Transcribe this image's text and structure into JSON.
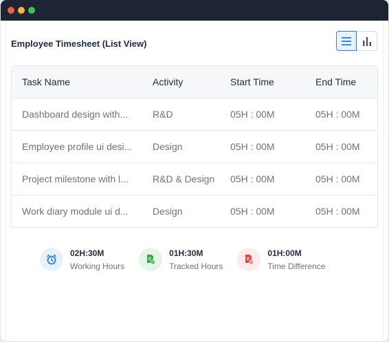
{
  "page": {
    "title": "Employee Timesheet (List View)",
    "views": [
      {
        "icon": "list-icon",
        "active": true
      },
      {
        "icon": "bar-chart-icon",
        "active": false
      }
    ]
  },
  "table": {
    "columns": [
      "Task Name",
      "Activity",
      "Start Time",
      "End Time"
    ],
    "rows": [
      {
        "task": "Dashboard design with...",
        "activity": "R&D",
        "start": "05H : 00M",
        "end": "05H : 00M"
      },
      {
        "task": "Employee profile ui desi...",
        "activity": "Design",
        "start": "05H : 00M",
        "end": "05H : 00M"
      },
      {
        "task": "Project milestone with l...",
        "activity": "R&D & Design",
        "start": "05H : 00M",
        "end": "05H : 00M"
      },
      {
        "task": "Work diary module ui d...",
        "activity": "Design",
        "start": "05H : 00M",
        "end": "05H : 00M"
      }
    ]
  },
  "summary": [
    {
      "value": "02H:30M",
      "label": "Working Hours",
      "icon": "alarm-clock-icon",
      "color": "#1e7be6",
      "bg": "#e6f1fd"
    },
    {
      "value": "01H:30M",
      "label": "Tracked Hours",
      "icon": "tracked-doc-icon",
      "color": "#3aa94f",
      "bg": "#e7f5e9"
    },
    {
      "value": "01H:00M",
      "label": "Time Difference",
      "icon": "difference-doc-icon",
      "color": "#e2473f",
      "bg": "#fdeaea"
    }
  ]
}
